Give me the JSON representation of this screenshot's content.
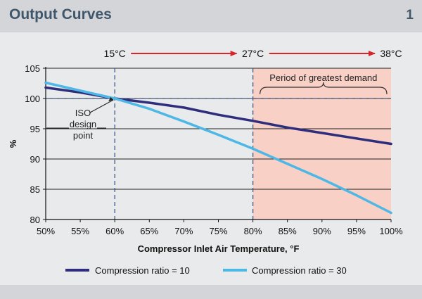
{
  "title": "Output Curves",
  "figure_number": "1",
  "temperature_markers": [
    {
      "label": "15°C",
      "x": 60
    },
    {
      "label": "27°C",
      "x": 80
    },
    {
      "label": "38°C",
      "x": 100
    }
  ],
  "annotations": {
    "iso_point": [
      "ISO",
      "design",
      "point"
    ],
    "demand_period": "Period of greatest demand"
  },
  "colors": {
    "series_ratio_10": "#2e2e7d",
    "series_ratio_30": "#4db8e6",
    "demand_shade": "#f8d0c6",
    "arrow": "#d6252b",
    "reference_lines": "#3d5a89",
    "title": "#3f566b"
  },
  "chart_data": {
    "type": "line",
    "title": "",
    "xlabel": "Compressor Inlet Air Temperature, °F",
    "ylabel": "%",
    "xlim": [
      50,
      100
    ],
    "ylim": [
      80,
      105
    ],
    "x_ticks": [
      50,
      55,
      60,
      65,
      70,
      75,
      80,
      85,
      90,
      95,
      100
    ],
    "x_tick_labels": [
      "50%",
      "55%",
      "60%",
      "65%",
      "70%",
      "75%",
      "80%",
      "85%",
      "90%",
      "95%",
      "100%"
    ],
    "y_ticks": [
      80,
      85,
      90,
      95,
      100,
      105
    ],
    "y_tick_labels": [
      "80",
      "85",
      "90",
      "95",
      "100",
      "105"
    ],
    "grid": "horizontal",
    "reference_lines": {
      "vertical": [
        60,
        80
      ],
      "horizontal": [
        100
      ]
    },
    "shaded_region": {
      "x": [
        80,
        100
      ],
      "label": "Period of greatest demand"
    },
    "legend_position": "bottom",
    "series": [
      {
        "name": "Compression ratio = 10",
        "x": [
          50,
          55,
          60,
          65,
          70,
          75,
          80,
          85,
          90,
          95,
          100
        ],
        "values": [
          101.8,
          101.0,
          100.0,
          99.3,
          98.5,
          97.3,
          96.3,
          95.2,
          94.3,
          93.4,
          92.5
        ]
      },
      {
        "name": "Compression ratio = 30",
        "x": [
          50,
          55,
          60,
          65,
          70,
          75,
          80,
          85,
          90,
          95,
          100
        ],
        "values": [
          102.6,
          101.3,
          100.0,
          98.3,
          96.2,
          94.0,
          91.7,
          89.2,
          86.7,
          84.0,
          81.1
        ]
      }
    ]
  }
}
